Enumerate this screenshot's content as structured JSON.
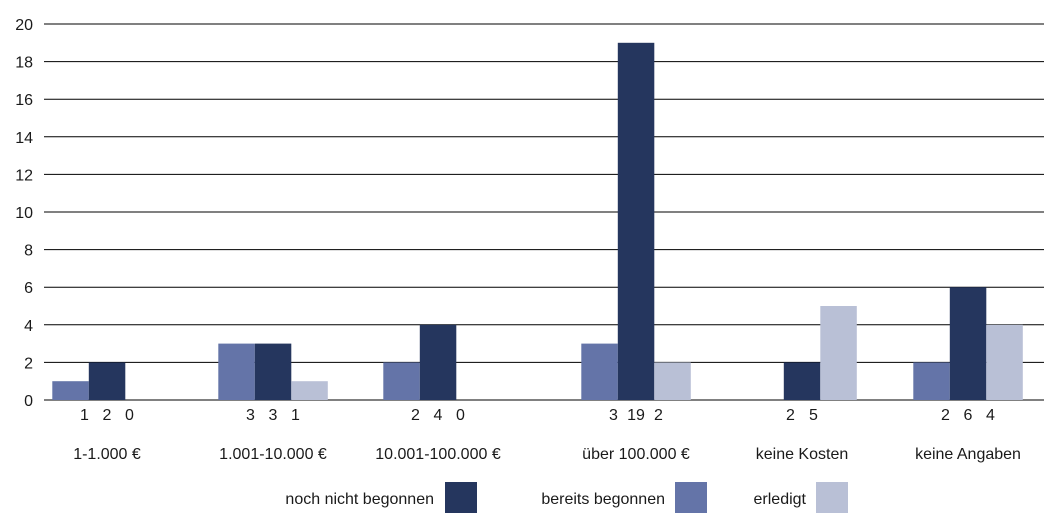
{
  "chart_data": {
    "type": "bar",
    "categories": [
      "1-1.000 €",
      "1.001-10.000 €",
      "10.001-100.000 €",
      "über 100.000 €",
      "keine Kosten",
      "keine Angaben"
    ],
    "data_label_rows": [
      [
        "1",
        "2",
        "0"
      ],
      [
        "3",
        "3",
        "1"
      ],
      [
        "2",
        "4",
        "0"
      ],
      [
        "3",
        "19",
        "2"
      ],
      [
        "2",
        "5"
      ],
      [
        "2",
        "6",
        "4"
      ]
    ],
    "bar_values": [
      [
        1,
        2,
        0
      ],
      [
        3,
        3,
        1
      ],
      [
        2,
        4,
        0
      ],
      [
        3,
        19,
        2
      ],
      [
        0,
        2,
        5
      ],
      [
        2,
        6,
        4
      ]
    ],
    "series": [
      {
        "name": "noch nicht begonnen",
        "color": "#25365e"
      },
      {
        "name": "bereits begonnen",
        "color": "#6474a8"
      },
      {
        "name": "erledigt",
        "color": "#b9c0d6"
      }
    ],
    "bar_colors": [
      "#6474a8",
      "#25365e",
      "#b9c0d6"
    ],
    "ylim": [
      0,
      20
    ],
    "yticks": [
      "0",
      "2",
      "4",
      "6",
      "8",
      "10",
      "12",
      "14",
      "16",
      "18",
      "20"
    ],
    "grid": true,
    "legend_position": "bottom"
  }
}
